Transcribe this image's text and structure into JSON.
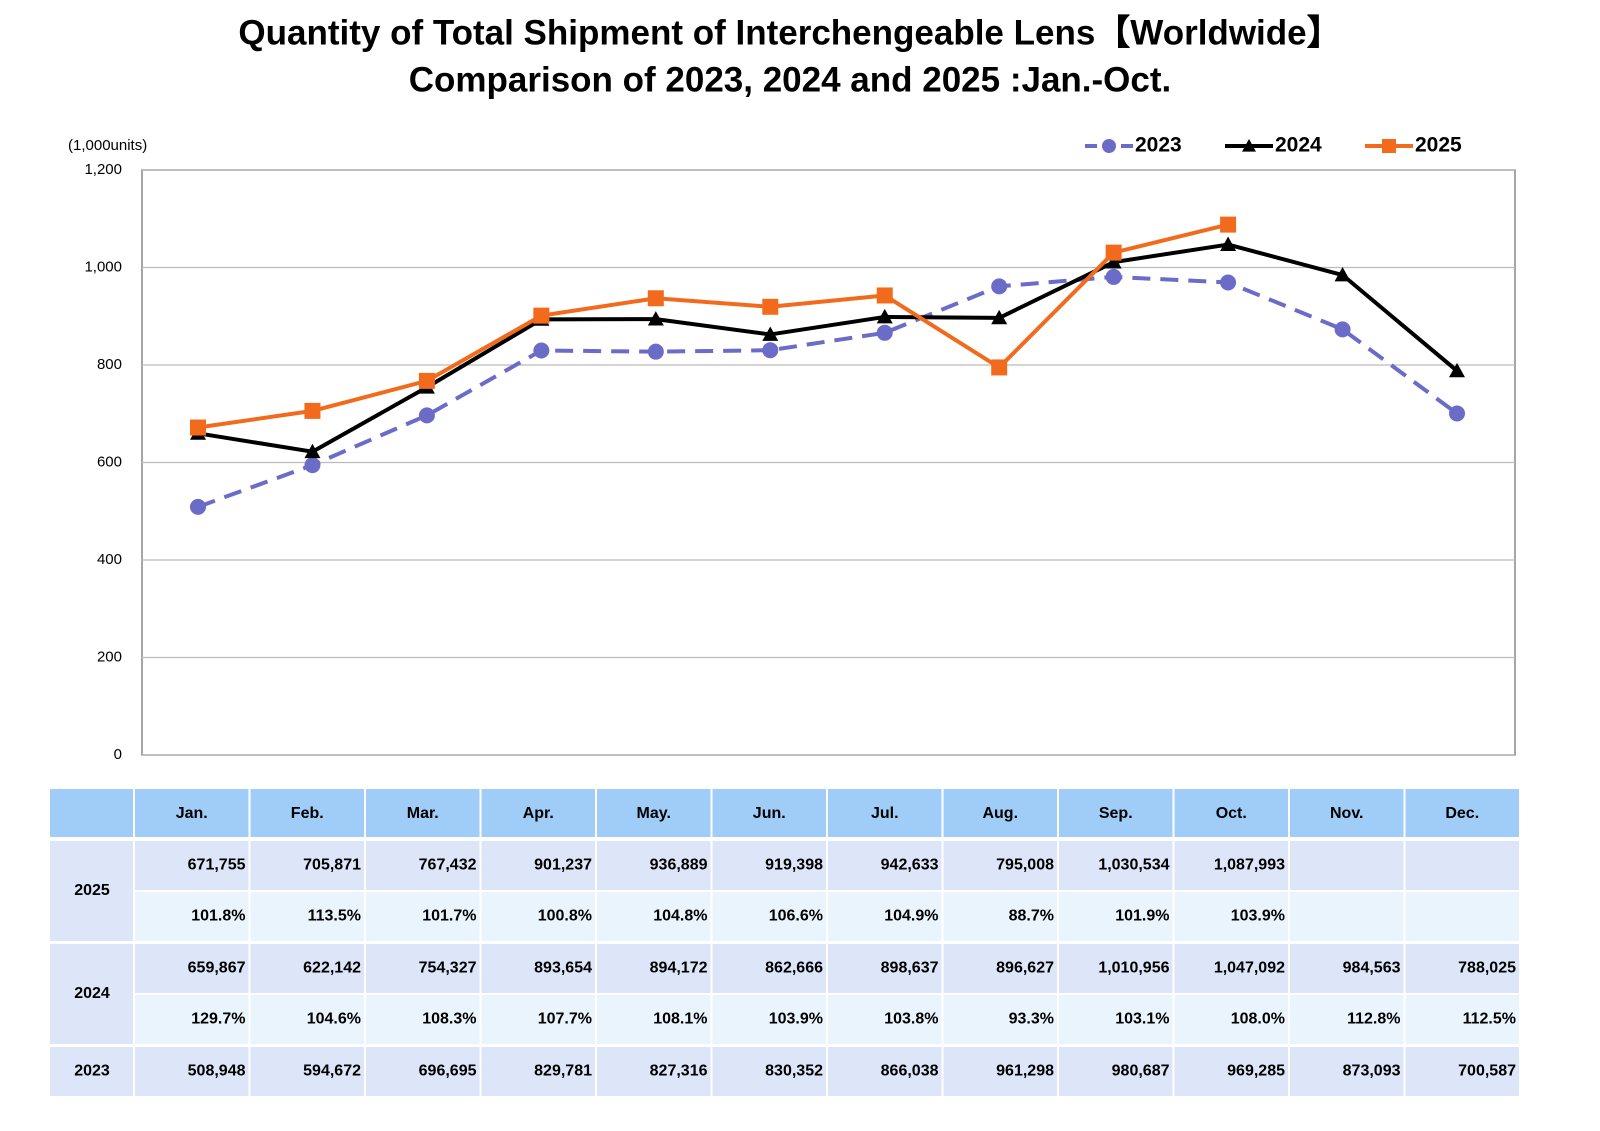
{
  "chart_data": {
    "type": "line",
    "title": "Quantity of Total Shipment of Interchengeable Lens【Worldwide】",
    "subtitle": "Comparison of 2023, 2024 and 2025 :Jan.-Oct.",
    "y_label": "(1,000units)",
    "categories": [
      "Jan.",
      "Feb.",
      "Mar.",
      "Apr.",
      "May.",
      "Jun.",
      "Jul.",
      "Aug.",
      "Sep.",
      "Oct.",
      "Nov.",
      "Dec."
    ],
    "ylim": [
      0,
      1200
    ],
    "yticks": [
      0,
      200,
      400,
      600,
      800,
      {
        "value": 1000,
        "label": "1,000"
      },
      {
        "value": 1200,
        "label": "1,200"
      }
    ],
    "grid": true,
    "legend": "top-right",
    "series": [
      {
        "name": "2023",
        "color": "#6b6bc8",
        "marker": "circle",
        "dash": true,
        "values": [
          508.948,
          594.672,
          696.695,
          829.781,
          827.316,
          830.352,
          866.038,
          961.298,
          980.687,
          969.285,
          873.093,
          700.587
        ],
        "value_labels": [
          "508,948",
          "594,672",
          "696,695",
          "829,781",
          "827,316",
          "830,352",
          "866,038",
          "961,298",
          "980,687",
          "969,285",
          "873,093",
          "700,587"
        ]
      },
      {
        "name": "2024",
        "color": "#000000",
        "marker": "triangle",
        "dash": false,
        "values": [
          659.867,
          622.142,
          754.327,
          893.654,
          894.172,
          862.666,
          898.637,
          896.627,
          1010.956,
          1047.092,
          984.563,
          788.025
        ],
        "value_labels": [
          "659,867",
          "622,142",
          "754,327",
          "893,654",
          "894,172",
          "862,666",
          "898,637",
          "896,627",
          "1,010,956",
          "1,047,092",
          "984,563",
          "788,025"
        ],
        "ratio_labels": [
          "129.7%",
          "104.6%",
          "108.3%",
          "107.7%",
          "108.1%",
          "103.9%",
          "103.8%",
          "93.3%",
          "103.1%",
          "108.0%",
          "112.8%",
          "112.5%"
        ]
      },
      {
        "name": "2025",
        "color": "#f26b1d",
        "marker": "square",
        "dash": false,
        "values": [
          671.755,
          705.871,
          767.432,
          901.237,
          936.889,
          919.398,
          942.633,
          795.008,
          1030.534,
          1087.993,
          null,
          null
        ],
        "value_labels": [
          "671,755",
          "705,871",
          "767,432",
          "901,237",
          "936,889",
          "919,398",
          "942,633",
          "795,008",
          "1,030,534",
          "1,087,993",
          null,
          null
        ],
        "ratio_labels": [
          "101.8%",
          "113.5%",
          "101.7%",
          "100.8%",
          "104.8%",
          "106.6%",
          "104.9%",
          "88.7%",
          "101.9%",
          "103.9%",
          null,
          null
        ]
      }
    ]
  }
}
